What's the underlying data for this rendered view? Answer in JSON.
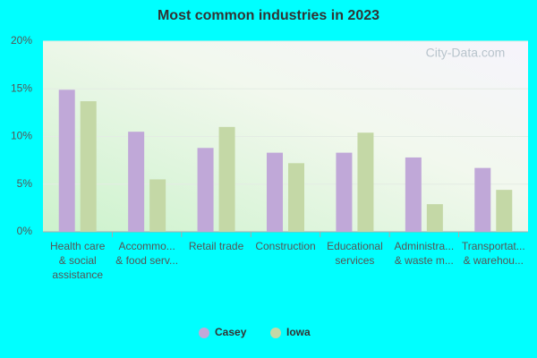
{
  "chart_data": {
    "type": "bar",
    "title": "Most common industries in 2023",
    "watermark": "City-Data.com",
    "categories": [
      "Health care\n& social\nassistance",
      "Accommo...\n& food serv...",
      "Retail trade",
      "Construction",
      "Educational\nservices",
      "Administra...\n& waste m...",
      "Transportat...\n& warehou..."
    ],
    "series": [
      {
        "name": "Casey",
        "color": "#c0a8d8",
        "values": [
          14.9,
          10.5,
          8.8,
          8.3,
          8.3,
          7.8,
          6.7
        ]
      },
      {
        "name": "Iowa",
        "color": "#c4d8a6",
        "values": [
          13.7,
          5.5,
          11.0,
          7.2,
          10.4,
          2.9,
          4.4
        ]
      }
    ],
    "ylim": [
      0,
      20
    ],
    "yticks": [
      {
        "value": 0,
        "label": "0%"
      },
      {
        "value": 5,
        "label": "5%"
      },
      {
        "value": 10,
        "label": "10%"
      },
      {
        "value": 15,
        "label": "15%"
      },
      {
        "value": 20,
        "label": "20%"
      }
    ],
    "grid": true,
    "legend": "bottom"
  }
}
